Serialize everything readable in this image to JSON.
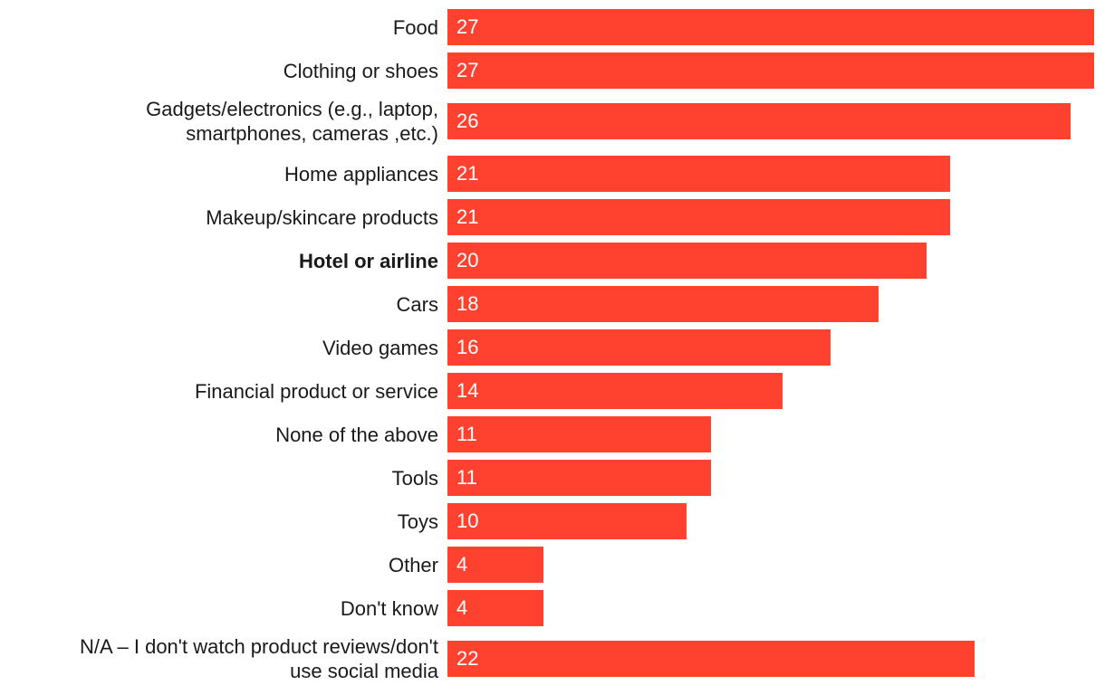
{
  "chart_data": {
    "type": "bar",
    "orientation": "horizontal",
    "title": "",
    "xlabel": "",
    "ylabel": "",
    "xlim": [
      0,
      27
    ],
    "grid": false,
    "bar_color": "#ff4130",
    "highlight_index": 5,
    "categories": [
      "Food",
      "Clothing or shoes",
      "Gadgets/electronics (e.g., laptop,\nsmartphones, cameras ,etc.)",
      "Home appliances",
      "Makeup/skincare products",
      "Hotel or airline",
      "Cars",
      "Video games",
      "Financial product or service",
      "None of the above",
      "Tools",
      "Toys",
      "Other",
      "Don't know",
      "N/A – I don't watch product reviews/don't\nuse social media"
    ],
    "values": [
      27,
      27,
      26,
      21,
      21,
      20,
      18,
      16,
      14,
      11,
      11,
      10,
      4,
      4,
      22
    ]
  }
}
